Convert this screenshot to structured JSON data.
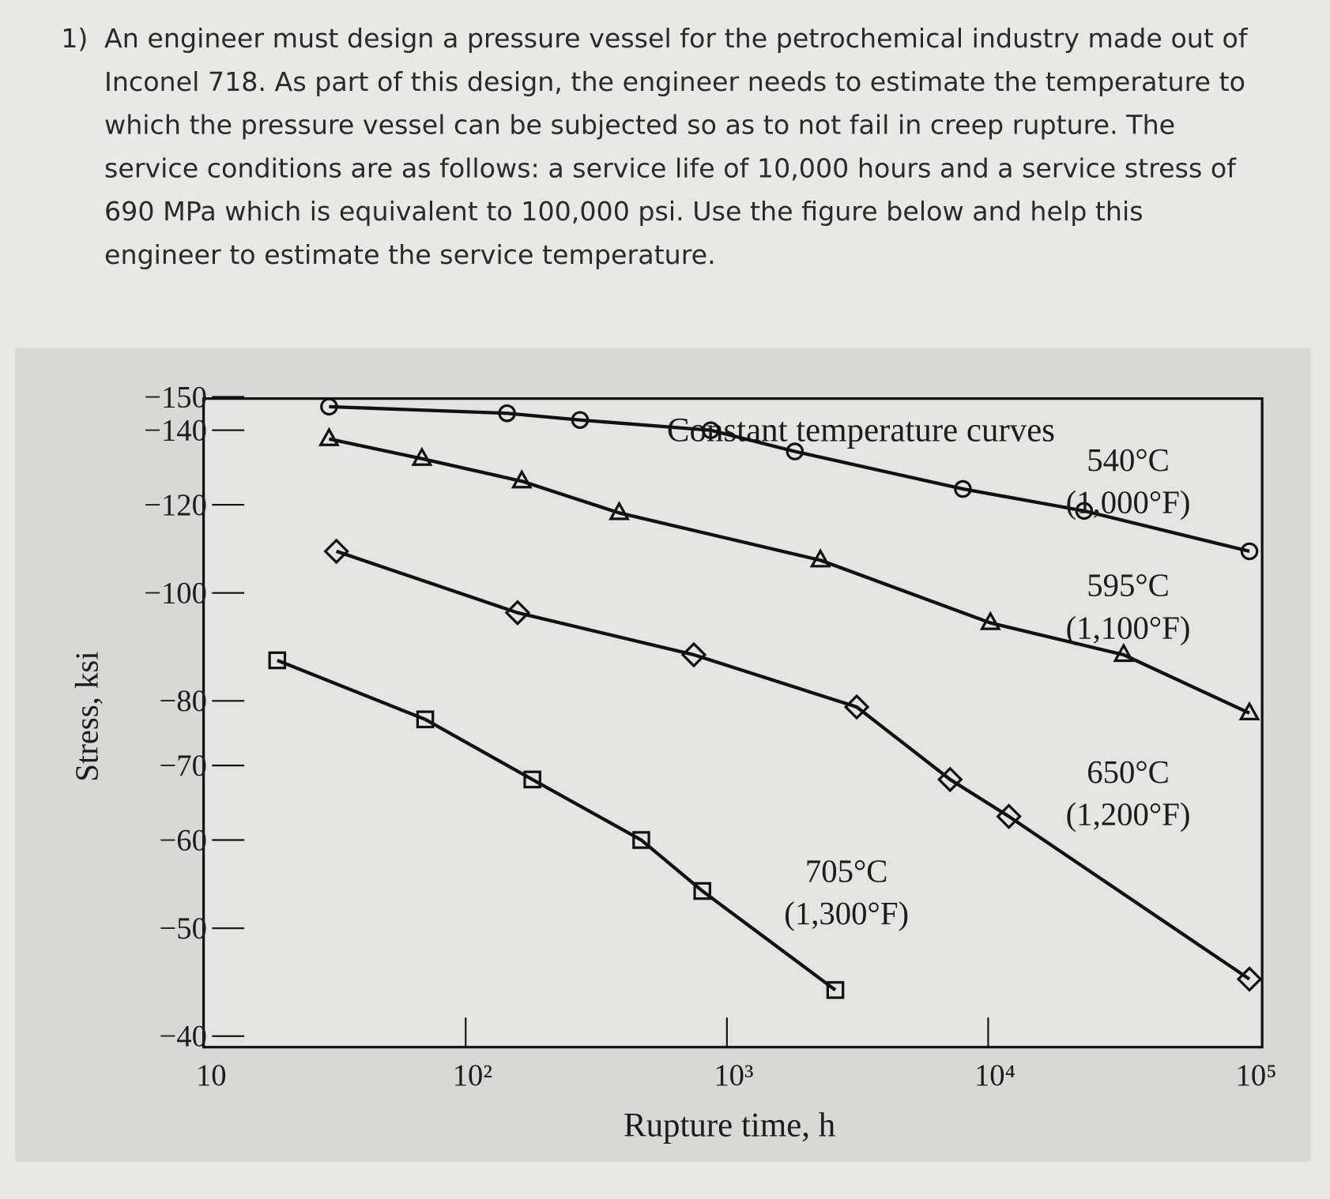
{
  "question": {
    "number": "1)",
    "lines": [
      "An engineer must design a pressure vessel for the petrochemical industry made out of",
      "Inconel 718.  As part of this design, the engineer needs to estimate the temperature to",
      "which the pressure vessel can be subjected so as to not fail in creep rupture.  The",
      "service conditions are as follows: a service life of 10,000 hours and a service stress of",
      "690 MPa which is equivalent to 100,000 psi.  Use the figure below and help this",
      "engineer to estimate the service temperature."
    ]
  },
  "chart_data": {
    "type": "line",
    "annotation": "Constant temperature curves",
    "x_label": "Rupture time, h",
    "y_label": "Stress, ksi",
    "xscale": "log",
    "yscale": "log",
    "xlim": [
      10,
      100000
    ],
    "xticks": [
      10,
      {
        "value": 100,
        "label": "10²"
      },
      {
        "value": 1000,
        "label": "10³"
      },
      {
        "value": 10000,
        "label": "10⁴"
      },
      {
        "value": 100000,
        "label": "10⁵"
      }
    ],
    "ylim": [
      40,
      150
    ],
    "yticks": [
      {
        "value": 40,
        "label": "−40"
      },
      {
        "value": 50,
        "label": "−50"
      },
      {
        "value": 60,
        "label": "−60"
      },
      {
        "value": 70,
        "label": "−70"
      },
      {
        "value": 80,
        "label": "−80"
      },
      {
        "value": 100,
        "label": "−100"
      },
      {
        "value": 120,
        "label": "−120"
      },
      {
        "value": 140,
        "label": "−140"
      },
      {
        "value": 150,
        "label": "−150"
      }
    ],
    "series": [
      {
        "name": "540°C",
        "name2": "(1,000°F)",
        "color": "#111111",
        "marker": "circle",
        "x": [
          30,
          144,
          274,
          867,
          1820,
          8000,
          23300,
          100000
        ],
        "values": [
          147,
          145,
          143,
          140,
          134,
          124,
          118.5,
          109
        ]
      },
      {
        "name": "595°C",
        "name2": "(1,100°F)",
        "color": "#111111",
        "marker": "triangle",
        "x": [
          30,
          68,
          164,
          387,
          2280,
          10200,
          33000,
          100000
        ],
        "values": [
          137.5,
          132,
          126,
          118,
          107,
          94,
          88,
          78
        ]
      },
      {
        "name": "650°C",
        "name2": "(1,200°F)",
        "color": "#111111",
        "marker": "diamond",
        "x": [
          32,
          158,
          747,
          3140,
          7150,
          12000,
          100000
        ],
        "values": [
          109,
          96,
          88,
          79,
          68,
          63,
          45
        ]
      },
      {
        "name": "705°C",
        "name2": "(1,300°F)",
        "color": "#111111",
        "marker": "square",
        "x": [
          19,
          70,
          180,
          470,
          805,
          2600
        ],
        "values": [
          87,
          77,
          68,
          60,
          54,
          44
        ]
      }
    ]
  }
}
